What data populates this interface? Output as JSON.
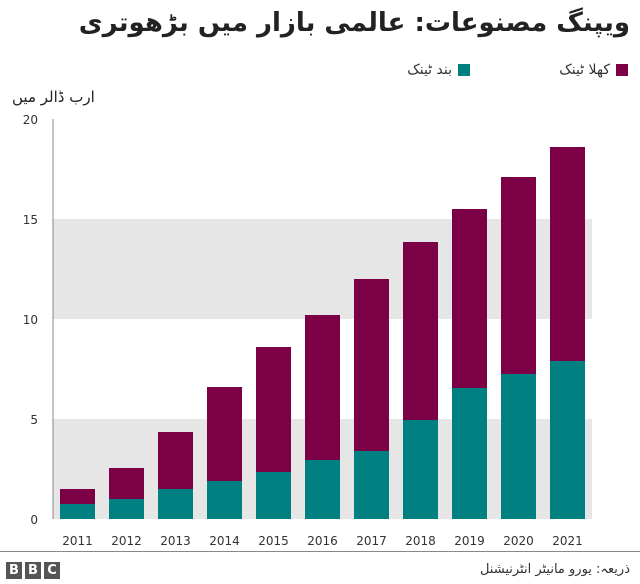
{
  "title": "ویپنگ مصنوعات: عالمی بازار میں بڑھوتری",
  "legend": [
    {
      "label": "کھلا ٹینک",
      "color": "#7b0046"
    },
    {
      "label": "بند ٹینک",
      "color": "#008080"
    }
  ],
  "source": "ذریعہ: یورو مانیٹر انٹرنیشنل",
  "logo": "BBC",
  "chart_data": {
    "type": "bar",
    "stacked": true,
    "title": "ویپنگ مصنوعات: عالمی بازار میں بڑھوتری",
    "ylabel": "ارب ڈالر میں",
    "xlabel": "",
    "ylim": [
      0,
      20
    ],
    "yticks": [
      0,
      5,
      10,
      15,
      20
    ],
    "categories": [
      "2011",
      "2012",
      "2013",
      "2014",
      "2015",
      "2016",
      "2017",
      "2018",
      "2019",
      "2020",
      "2021"
    ],
    "series": [
      {
        "name": "بند ٹینک",
        "color": "#008080",
        "values": [
          0.75,
          1.0,
          1.5,
          1.9,
          2.35,
          2.95,
          3.4,
          4.95,
          6.55,
          7.25,
          7.9
        ]
      },
      {
        "name": "کھلا ٹینک",
        "color": "#7b0046",
        "values": [
          0.75,
          1.55,
          2.85,
          4.7,
          6.25,
          7.25,
          8.6,
          8.9,
          8.95,
          9.85,
          10.7
        ]
      }
    ],
    "legend_position": "top-right"
  }
}
